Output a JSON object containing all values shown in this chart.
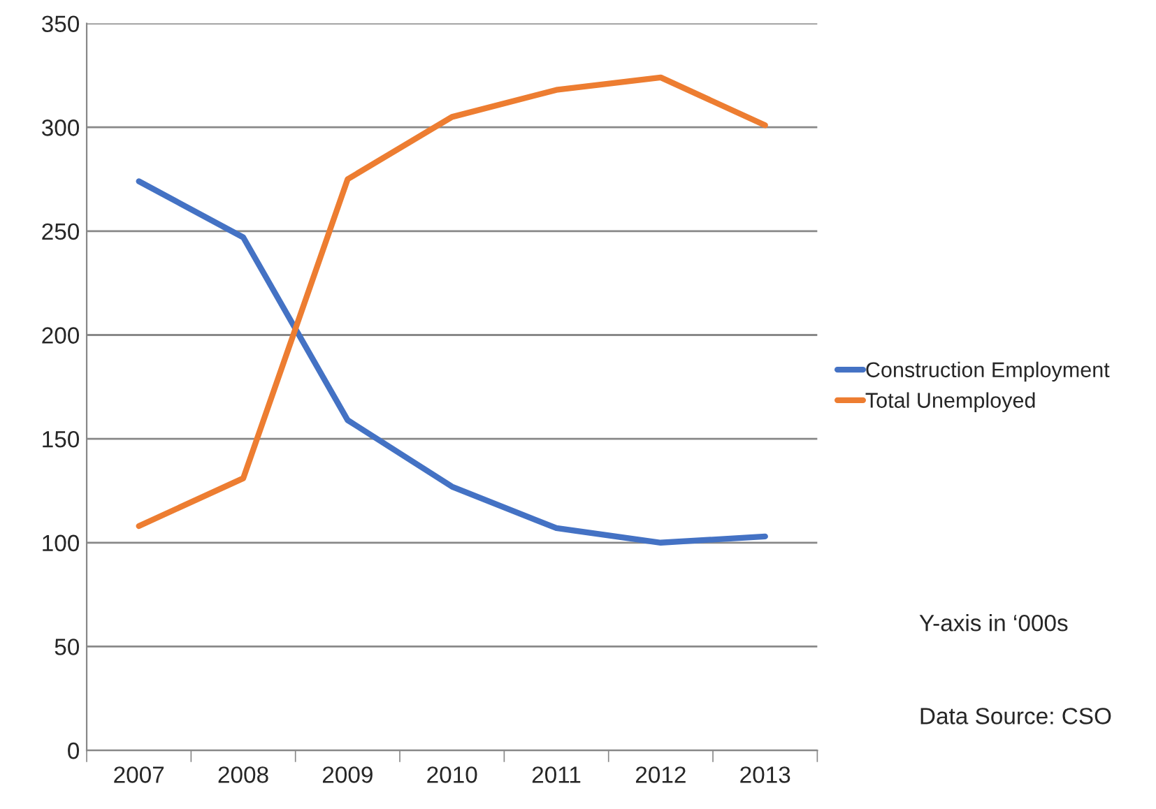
{
  "chart_data": {
    "type": "line",
    "categories": [
      "2007",
      "2008",
      "2009",
      "2010",
      "2011",
      "2012",
      "2013"
    ],
    "series": [
      {
        "name": "Construction Employment",
        "color": "#4472c4",
        "values": [
          274,
          247,
          159,
          127,
          107,
          100,
          103
        ]
      },
      {
        "name": "Total Unemployed",
        "color": "#ed7d31",
        "values": [
          108,
          131,
          275,
          305,
          318,
          324,
          301
        ]
      }
    ],
    "ylim": [
      0,
      350
    ],
    "yticks": [
      0,
      50,
      100,
      150,
      200,
      250,
      300,
      350
    ],
    "grid": "y",
    "legend": "right",
    "marker": "none",
    "line_style": "solid",
    "annotations": [
      "Y-axis in ‘000s",
      "Data Source: CSO"
    ]
  }
}
